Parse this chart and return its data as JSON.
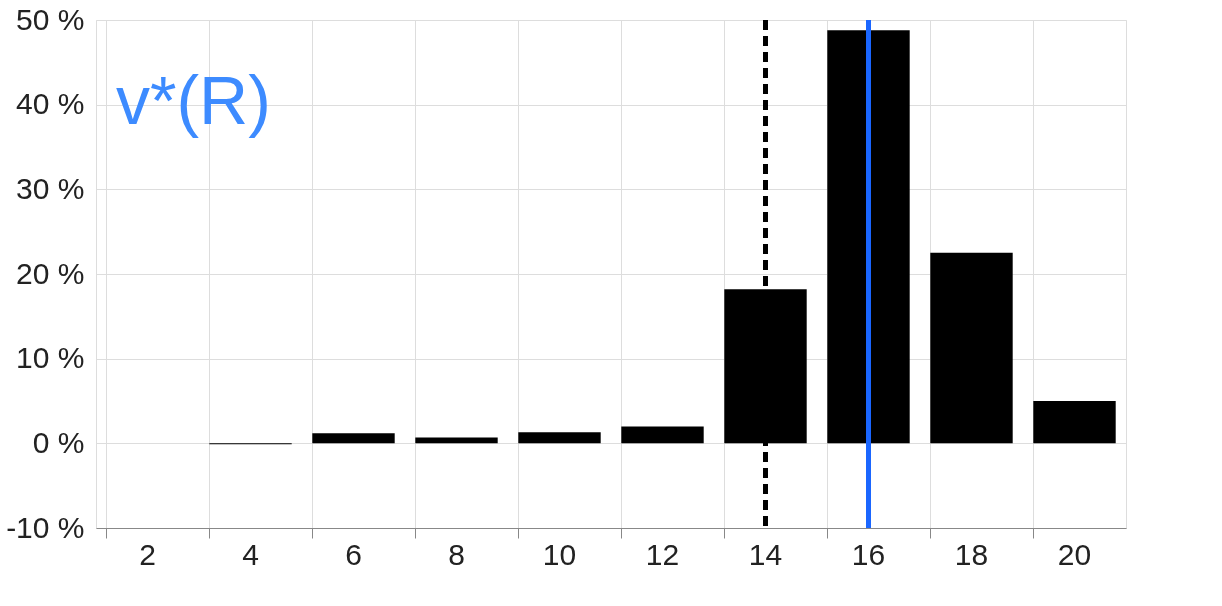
{
  "chart_data": {
    "type": "bar",
    "categories": [
      "2",
      "4",
      "6",
      "8",
      "10",
      "12",
      "14",
      "16",
      "18",
      "20"
    ],
    "series": [
      {
        "color": "#000000",
        "values": [
          null,
          -0.1,
          1.2,
          0.7,
          1.3,
          2.0,
          18.2,
          48.8,
          22.5,
          5.0
        ]
      }
    ],
    "ylim": [
      -10,
      50
    ],
    "yticks": [
      {
        "value": -10,
        "label": "-10 %"
      },
      {
        "value": 0,
        "label": "0 %"
      },
      {
        "value": 10,
        "label": "10 %"
      },
      {
        "value": 20,
        "label": "20 %"
      },
      {
        "value": 30,
        "label": "30 %"
      },
      {
        "value": 40,
        "label": "40 %"
      },
      {
        "value": 50,
        "label": "50 %"
      }
    ],
    "ref_lines": [
      {
        "axis": "x",
        "value": "14",
        "color": "#000000",
        "line_style": "dashed"
      },
      {
        "axis": "x",
        "value": "16",
        "color": "#1a66ff",
        "line_style": "solid"
      }
    ],
    "annotations": [
      "v*(R)"
    ],
    "grid": true
  }
}
